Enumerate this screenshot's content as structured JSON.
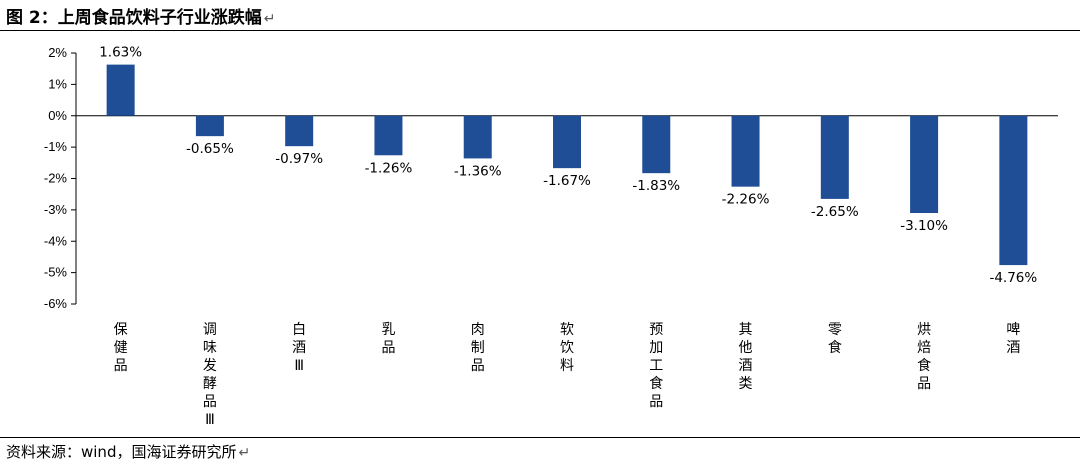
{
  "title": "图 2：上周食品饮料子行业涨跌幅",
  "source": "资料来源：wind，国海证券研究所",
  "return_mark": "↵",
  "colors": {
    "bar": "#1f4e97",
    "axis": "#000000",
    "text": "#000000"
  },
  "chart_data": {
    "type": "bar",
    "title": "",
    "xlabel": "",
    "ylabel": "",
    "ylim": [
      -6,
      2
    ],
    "y_ticks": [
      "2%",
      "1%",
      "0%",
      "-1%",
      "-2%",
      "-3%",
      "-4%",
      "-5%",
      "-6%"
    ],
    "y_tick_values": [
      2,
      1,
      0,
      -1,
      -2,
      -3,
      -4,
      -5,
      -6
    ],
    "grid": false,
    "categories": [
      "保健品",
      "调味发酵品Ⅲ",
      "白酒Ⅲ",
      "乳品",
      "肉制品",
      "软饮料",
      "预加工食品",
      "其他酒类",
      "零食",
      "烘焙食品",
      "啤酒"
    ],
    "values": [
      1.63,
      -0.65,
      -0.97,
      -1.26,
      -1.36,
      -1.67,
      -1.83,
      -2.26,
      -2.65,
      -3.1,
      -4.76
    ],
    "data_labels": [
      "1.63%",
      "-0.65%",
      "-0.97%",
      "-1.26%",
      "-1.36%",
      "-1.67%",
      "-1.83%",
      "-2.26%",
      "-2.65%",
      "-3.10%",
      "-4.76%"
    ]
  }
}
